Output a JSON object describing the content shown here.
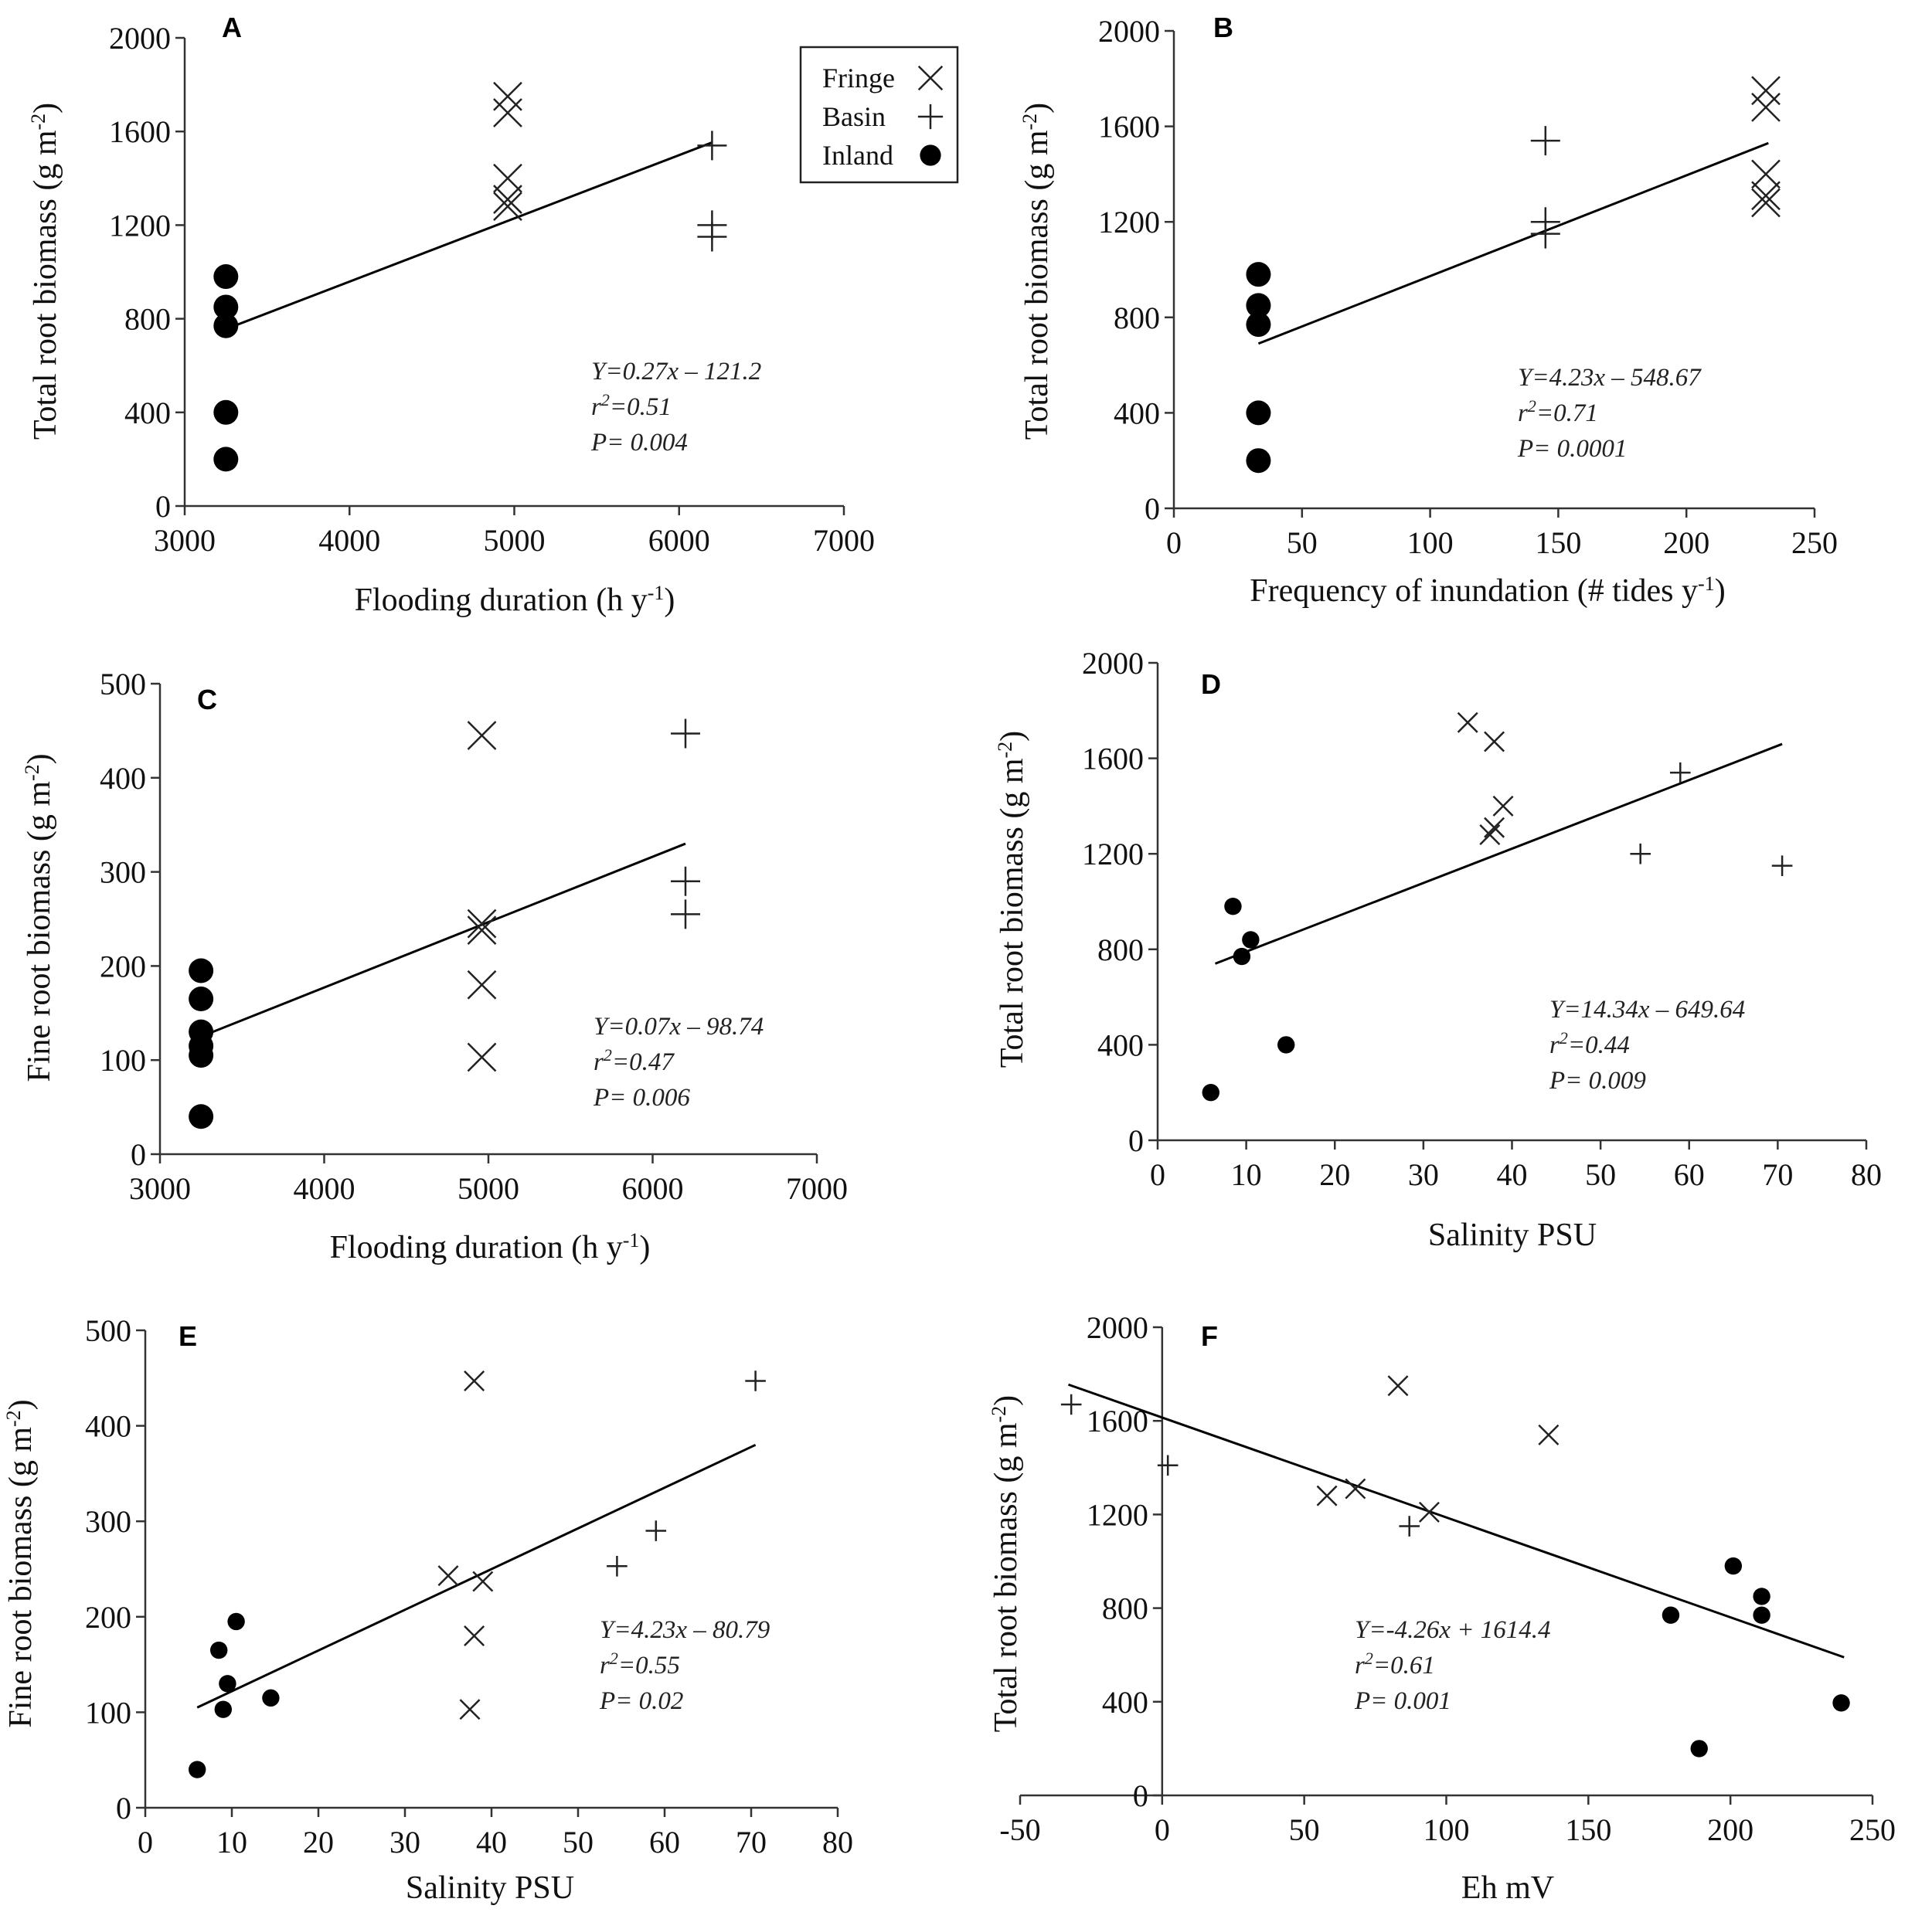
{
  "chart_data": [
    {
      "type": "scatter",
      "panel": "A",
      "xlabel": [
        {
          "t": "Flooding duration (h y"
        },
        {
          "t": "-1",
          "sup": true
        },
        {
          "t": ")"
        }
      ],
      "ylabel": [
        {
          "t": "Total  root biomass  (g m"
        },
        {
          "t": "-2",
          "sup": true
        },
        {
          "t": ")"
        }
      ],
      "xlim": [
        3000,
        7000
      ],
      "xticks": [
        3000,
        4000,
        5000,
        6000,
        7000
      ],
      "ylim": [
        0,
        2000
      ],
      "yticks": [
        0,
        400,
        800,
        1200,
        1600,
        2000
      ],
      "series": [
        {
          "name": "Fringe",
          "marker": "x",
          "points": [
            [
              4960,
              1750
            ],
            [
              4960,
              1680
            ],
            [
              4960,
              1400
            ],
            [
              4960,
              1310
            ],
            [
              4960,
              1280
            ]
          ]
        },
        {
          "name": "Basin",
          "marker": "+",
          "points": [
            [
              6200,
              1540
            ],
            [
              6200,
              1200
            ],
            [
              6200,
              1150
            ]
          ]
        },
        {
          "name": "Inland",
          "marker": "circle",
          "points": [
            [
              3250,
              980
            ],
            [
              3250,
              850
            ],
            [
              3250,
              770
            ],
            [
              3250,
              400
            ],
            [
              3250,
              200
            ]
          ]
        }
      ],
      "fit_line": [
        [
          3250,
          756
        ],
        [
          6200,
          1553
        ]
      ],
      "equation": "Y=0.27x – 121.2",
      "r2": "=0.51",
      "p": "P= 0.004",
      "legend": {
        "position": "top-right",
        "entries": [
          "Fringe",
          "Basin",
          "Inland"
        ]
      }
    },
    {
      "type": "scatter",
      "panel": "B",
      "xlabel": [
        {
          "t": "Frequency of inundation (# tides y"
        },
        {
          "t": "-1",
          "sup": true
        },
        {
          "t": ")"
        }
      ],
      "ylabel": [
        {
          "t": "Total root  biomass  (g m"
        },
        {
          "t": "-2",
          "sup": true
        },
        {
          "t": ")"
        }
      ],
      "xlim": [
        0,
        250
      ],
      "xticks": [
        0,
        50,
        100,
        150,
        200,
        250
      ],
      "ylim": [
        0,
        2000
      ],
      "yticks": [
        0,
        400,
        800,
        1200,
        1600,
        2000
      ],
      "series": [
        {
          "name": "Fringe",
          "marker": "x",
          "points": [
            [
              231,
              1750
            ],
            [
              231,
              1680
            ],
            [
              231,
              1400
            ],
            [
              231,
              1310
            ],
            [
              231,
              1280
            ]
          ]
        },
        {
          "name": "Basin",
          "marker": "+",
          "points": [
            [
              145,
              1540
            ],
            [
              145,
              1200
            ],
            [
              145,
              1150
            ]
          ]
        },
        {
          "name": "Inland",
          "marker": "circle",
          "points": [
            [
              33,
              980
            ],
            [
              33,
              850
            ],
            [
              33,
              770
            ],
            [
              33,
              400
            ],
            [
              33,
              200
            ]
          ]
        }
      ],
      "fit_line": [
        [
          33,
          690
        ],
        [
          232,
          1530
        ]
      ],
      "equation": "Y=4.23x – 548.67",
      "r2": "=0.71",
      "p": "P= 0.0001"
    },
    {
      "type": "scatter",
      "panel": "C",
      "xlabel": [
        {
          "t": "Flooding duration (h y"
        },
        {
          "t": "-1",
          "sup": true
        },
        {
          "t": ")"
        }
      ],
      "ylabel": [
        {
          "t": "Fine root  biomass (g m"
        },
        {
          "t": "-2",
          "sup": true
        },
        {
          "t": ")"
        }
      ],
      "xlim": [
        3000,
        7000
      ],
      "xticks": [
        3000,
        4000,
        5000,
        6000,
        7000
      ],
      "ylim": [
        0,
        500
      ],
      "yticks": [
        0,
        100,
        200,
        300,
        400,
        500
      ],
      "series": [
        {
          "name": "Fringe",
          "marker": "x",
          "points": [
            [
              4960,
              445
            ],
            [
              4960,
              245
            ],
            [
              4960,
              238
            ],
            [
              4960,
              180
            ],
            [
              4960,
              103
            ]
          ]
        },
        {
          "name": "Basin",
          "marker": "+",
          "points": [
            [
              6200,
              447
            ],
            [
              6200,
              290
            ],
            [
              6200,
              255
            ]
          ]
        },
        {
          "name": "Inland",
          "marker": "circle",
          "points": [
            [
              3250,
              195
            ],
            [
              3250,
              165
            ],
            [
              3250,
              130
            ],
            [
              3250,
              115
            ],
            [
              3250,
              105
            ],
            [
              3250,
              40
            ]
          ]
        }
      ],
      "fit_line": [
        [
          3250,
          125
        ],
        [
          6200,
          330
        ]
      ],
      "equation": "Y=0.07x – 98.74",
      "r2": "=0.47",
      "p": "P= 0.006"
    },
    {
      "type": "scatter",
      "panel": "D",
      "xlabel": [
        {
          "t": "Salinity PSU"
        }
      ],
      "ylabel": [
        {
          "t": "Total root biomass  (g m"
        },
        {
          "t": "-2",
          "sup": true
        },
        {
          "t": ")"
        }
      ],
      "xlim": [
        0,
        80
      ],
      "xticks": [
        0,
        10,
        20,
        30,
        40,
        50,
        60,
        70,
        80
      ],
      "ylim": [
        0,
        2000
      ],
      "yticks": [
        0,
        400,
        800,
        1200,
        1600,
        2000
      ],
      "series": [
        {
          "name": "Fringe",
          "marker": "x",
          "points": [
            [
              35,
              1750
            ],
            [
              38,
              1670
            ],
            [
              39,
              1400
            ],
            [
              38,
              1310
            ],
            [
              37.5,
              1280
            ]
          ]
        },
        {
          "name": "Basin",
          "marker": "+",
          "points": [
            [
              59,
              1540
            ],
            [
              54.5,
              1200
            ],
            [
              70.5,
              1150
            ]
          ]
        },
        {
          "name": "Inland",
          "marker": "circle",
          "points": [
            [
              8.5,
              980
            ],
            [
              10.5,
              840
            ],
            [
              9.5,
              770
            ],
            [
              14.5,
              400
            ],
            [
              6,
              200
            ]
          ]
        }
      ],
      "fit_line": [
        [
          6.5,
          740
        ],
        [
          70.5,
          1660
        ]
      ],
      "equation": "Y=14.34x – 649.64",
      "r2": "=0.44",
      "p": "P= 0.009"
    },
    {
      "type": "scatter",
      "panel": "E",
      "xlabel": [
        {
          "t": "Salinity PSU"
        }
      ],
      "ylabel": [
        {
          "t": "Fine root  biomass (g m"
        },
        {
          "t": "-2",
          "sup": true
        },
        {
          "t": ")"
        }
      ],
      "xlim": [
        0,
        80
      ],
      "xticks": [
        0,
        10,
        20,
        30,
        40,
        50,
        60,
        70,
        80
      ],
      "ylim": [
        0,
        500
      ],
      "yticks": [
        0,
        100,
        200,
        300,
        400,
        500
      ],
      "series": [
        {
          "name": "Fringe",
          "marker": "x",
          "points": [
            [
              38,
              447
            ],
            [
              35,
              243
            ],
            [
              39,
              237
            ],
            [
              38,
              180
            ],
            [
              37.5,
              103
            ]
          ]
        },
        {
          "name": "Basin",
          "marker": "+",
          "points": [
            [
              70.5,
              447
            ],
            [
              59,
              290
            ],
            [
              54.5,
              253
            ]
          ]
        },
        {
          "name": "Inland",
          "marker": "circle",
          "points": [
            [
              6,
              40
            ],
            [
              8.5,
              165
            ],
            [
              9.5,
              130
            ],
            [
              10.5,
              195
            ],
            [
              9,
              103
            ],
            [
              14.5,
              115
            ]
          ]
        }
      ],
      "fit_line": [
        [
          6,
          105
        ],
        [
          70.5,
          380
        ]
      ],
      "equation": "Y=4.23x – 80.79",
      "r2": "=0.55",
      "p": "P= 0.02"
    },
    {
      "type": "scatter",
      "panel": "F",
      "xlabel": [
        {
          "t": "Eh mV"
        }
      ],
      "ylabel": [
        {
          "t": "Total root biomass (g m"
        },
        {
          "t": "-2",
          "sup": true
        },
        {
          "t": ")"
        }
      ],
      "xlim": [
        -50,
        250
      ],
      "xticks": [
        -50,
        0,
        50,
        100,
        150,
        200,
        250
      ],
      "ylim": [
        0,
        2000
      ],
      "yticks": [
        0,
        400,
        800,
        1200,
        1600,
        2000
      ],
      "series": [
        {
          "name": "Fringe",
          "marker": "x",
          "points": [
            [
              83,
              1750
            ],
            [
              136,
              1540
            ],
            [
              58,
              1280
            ],
            [
              68,
              1310
            ],
            [
              94,
              1210
            ]
          ]
        },
        {
          "name": "Basin",
          "marker": "+",
          "points": [
            [
              -32,
              1670
            ],
            [
              2,
              1410
            ],
            [
              87,
              1150
            ]
          ]
        },
        {
          "name": "Inland",
          "marker": "circle",
          "points": [
            [
              201,
              980
            ],
            [
              211,
              850
            ],
            [
              211,
              770
            ],
            [
              179,
              770
            ],
            [
              189,
              200
            ],
            [
              239,
              395
            ]
          ]
        }
      ],
      "fit_line": [
        [
          -33,
          1755
        ],
        [
          240,
          590
        ]
      ],
      "equation": "Y=-4.26x + 1614.4",
      "r2": "=0.61",
      "p": "P= 0.001"
    }
  ]
}
